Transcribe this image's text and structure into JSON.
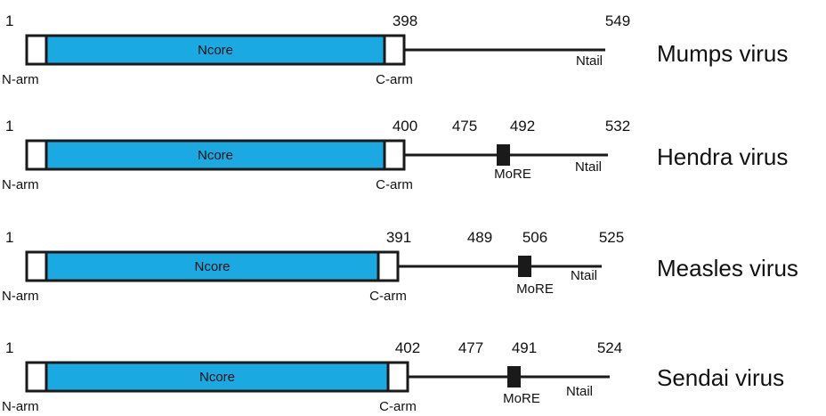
{
  "colors": {
    "ncore_fill": "#1BA9E1",
    "arm_fill": "#FFFFFF",
    "outline": "#1A1A1A",
    "more_fill": "#1A1A1A"
  },
  "proteins": [
    {
      "virus": "Mumps virus",
      "start_label": "1",
      "core_end_label": "398",
      "end_label": "549",
      "region_labels": {
        "n_arm": "N-arm",
        "core": "Ncore",
        "c_arm": "C-arm",
        "tail": "Ntail"
      },
      "more": null
    },
    {
      "virus": "Hendra virus",
      "start_label": "1",
      "core_end_label": "400",
      "end_label": "532",
      "region_labels": {
        "n_arm": "N-arm",
        "core": "Ncore",
        "c_arm": "C-arm",
        "tail": "Ntail"
      },
      "more": {
        "label": "MoRE",
        "start_label": "475",
        "end_label": "492"
      }
    },
    {
      "virus": "Measles virus",
      "start_label": "1",
      "core_end_label": "391",
      "end_label": "525",
      "region_labels": {
        "n_arm": "N-arm",
        "core": "Ncore",
        "c_arm": "C-arm",
        "tail": "Ntail"
      },
      "more": {
        "label": "MoRE",
        "start_label": "489",
        "end_label": "506"
      }
    },
    {
      "virus": "Sendai virus",
      "start_label": "1",
      "core_end_label": "402",
      "end_label": "524",
      "region_labels": {
        "n_arm": "N-arm",
        "core": "Ncore",
        "c_arm": "C-arm",
        "tail": "Ntail"
      },
      "more": {
        "label": "MoRE",
        "start_label": "477",
        "end_label": "491"
      }
    }
  ]
}
